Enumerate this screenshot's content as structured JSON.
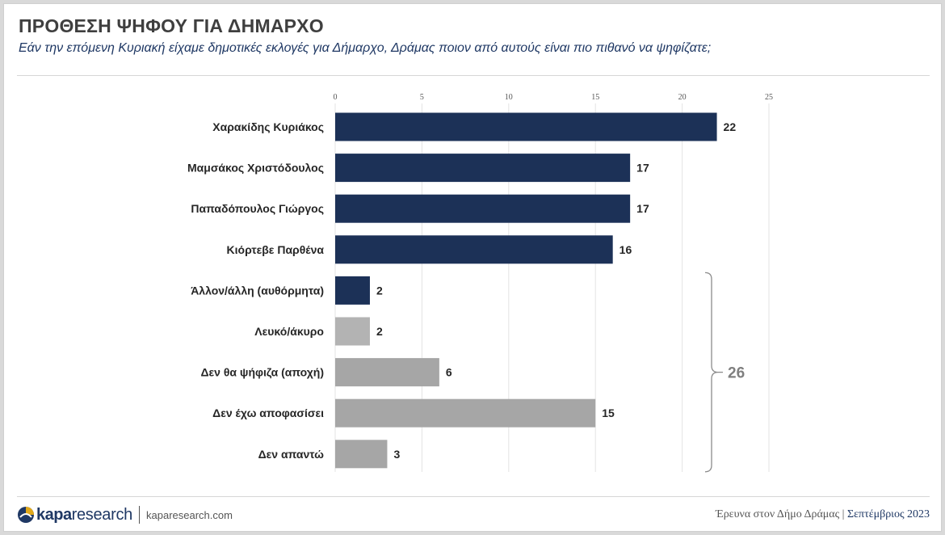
{
  "header": {
    "title": "ΠΡΟΘΕΣΗ ΨΗΦΟΥ ΓΙΑ ΔΗΜΑΡΧΟ",
    "subtitle": "Εάν την επόμενη Κυριακή είχαμε δημοτικές εκλογές για Δήμαρχο, Δράμας ποιον από αυτούς είναι πιο πιθανό να ψηφίζατε;"
  },
  "chart_data": {
    "type": "bar",
    "orientation": "horizontal",
    "categories": [
      "Χαρακίδης Κυριάκος",
      "Μαμσάκος Χριστόδουλος",
      "Παπαδόπουλος Γιώργος",
      "Κιόρτεβε Παρθένα",
      "Άλλον/άλλη (αυθόρμητα)",
      "Λευκό/άκυρο",
      "Δεν θα ψήφιζα (αποχή)",
      "Δεν έχω αποφασίσει",
      "Δεν απαντώ"
    ],
    "values": [
      22,
      17,
      17,
      16,
      2,
      2,
      6,
      15,
      3
    ],
    "colors": [
      "#1c3157",
      "#1c3157",
      "#1c3157",
      "#1c3157",
      "#1c3157",
      "#b3b3b3",
      "#a6a6a6",
      "#a6a6a6",
      "#a6a6a6"
    ],
    "xlim": [
      0,
      25
    ],
    "xticks": [
      0,
      5,
      10,
      15,
      20,
      25
    ],
    "grid": true,
    "bracket": {
      "from_category": 4,
      "to_category": 8,
      "label": "26"
    }
  },
  "footer": {
    "logo_kapa": "kapa",
    "logo_research": "research",
    "url": "kaparesearch.com",
    "survey": "Έρευνα στον Δήμο Δράμας | ",
    "month": "Σεπτέμβριος 2023"
  }
}
